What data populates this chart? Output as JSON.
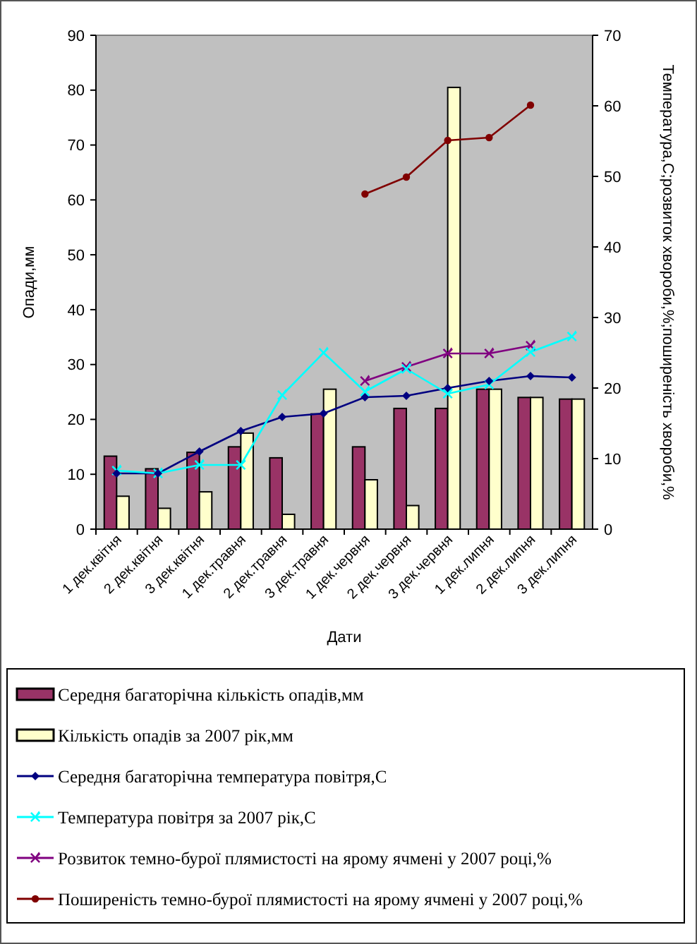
{
  "chart_data": {
    "type": "bar",
    "xlabel": "Дати",
    "ylabel": "Опади,мм",
    "y2label": "Температура,С;розвиток хвороби,%;поширеність хвороби,%",
    "categories": [
      "1 дек.квітня",
      "2 дек.квітня",
      "3 дек.квітня",
      "1 дек.травня",
      "2 дек.травня",
      "3 дек.травня",
      "1 дек.червня",
      "2 дек.червня",
      "3 дек.червня",
      "1 дек.липня",
      "2 дек.липня",
      "3 дек.липня"
    ],
    "series": [
      {
        "name": "Середня багаторічна кількість опадів,мм",
        "color": "#993366",
        "values": [
          13.3,
          11,
          14,
          15,
          13,
          21,
          15,
          22,
          22,
          25.5,
          24,
          23.7
        ]
      },
      {
        "name": "Кількість опадів за 2007 рік,мм",
        "color": "#ffffcc",
        "values": [
          6,
          3.8,
          6.8,
          17.5,
          2.7,
          25.5,
          9,
          4.3,
          80.5,
          25.5,
          24,
          23.7
        ]
      },
      {
        "name": "Середня багаторічна температура повітря,С",
        "type": "line",
        "axis": "y2",
        "marker": "diamond",
        "color": "#000080",
        "values": [
          7.9,
          7.9,
          11,
          13.9,
          15.9,
          16.4,
          18.7,
          18.9,
          20,
          21,
          21.7,
          21.5
        ]
      },
      {
        "name": "Температура повітря за 2007 рік,С",
        "type": "line",
        "axis": "y2",
        "marker": "cross",
        "color": "#00ffff",
        "values": [
          8.3,
          7.9,
          9.1,
          9.1,
          19,
          25,
          19.5,
          22.7,
          19.2,
          20.5,
          25.1,
          27.3
        ]
      },
      {
        "name": "Розвиток темно-бурої плямистості на ярому ячмені у 2007 році,%",
        "type": "line",
        "axis": "y2",
        "marker": "cross",
        "color": "#800080",
        "values": [
          null,
          null,
          null,
          null,
          null,
          null,
          21,
          23,
          24.9,
          24.9,
          26,
          null
        ]
      },
      {
        "name": "Поширеність темно-бурої плямистості на ярому ячмені у 2007 році,%",
        "type": "line",
        "axis": "y2",
        "marker": "circle",
        "color": "#800000",
        "values": [
          null,
          null,
          null,
          null,
          null,
          null,
          47.5,
          49.9,
          55.1,
          55.5,
          60.1,
          null
        ]
      }
    ],
    "ylim": [
      0,
      90
    ],
    "yticks": [
      0,
      10,
      20,
      30,
      40,
      50,
      60,
      70,
      80,
      90
    ],
    "y2lim": [
      0,
      70
    ],
    "y2ticks": [
      0,
      10,
      20,
      30,
      40,
      50,
      60,
      70
    ],
    "grid": false,
    "legend": "bottom"
  }
}
